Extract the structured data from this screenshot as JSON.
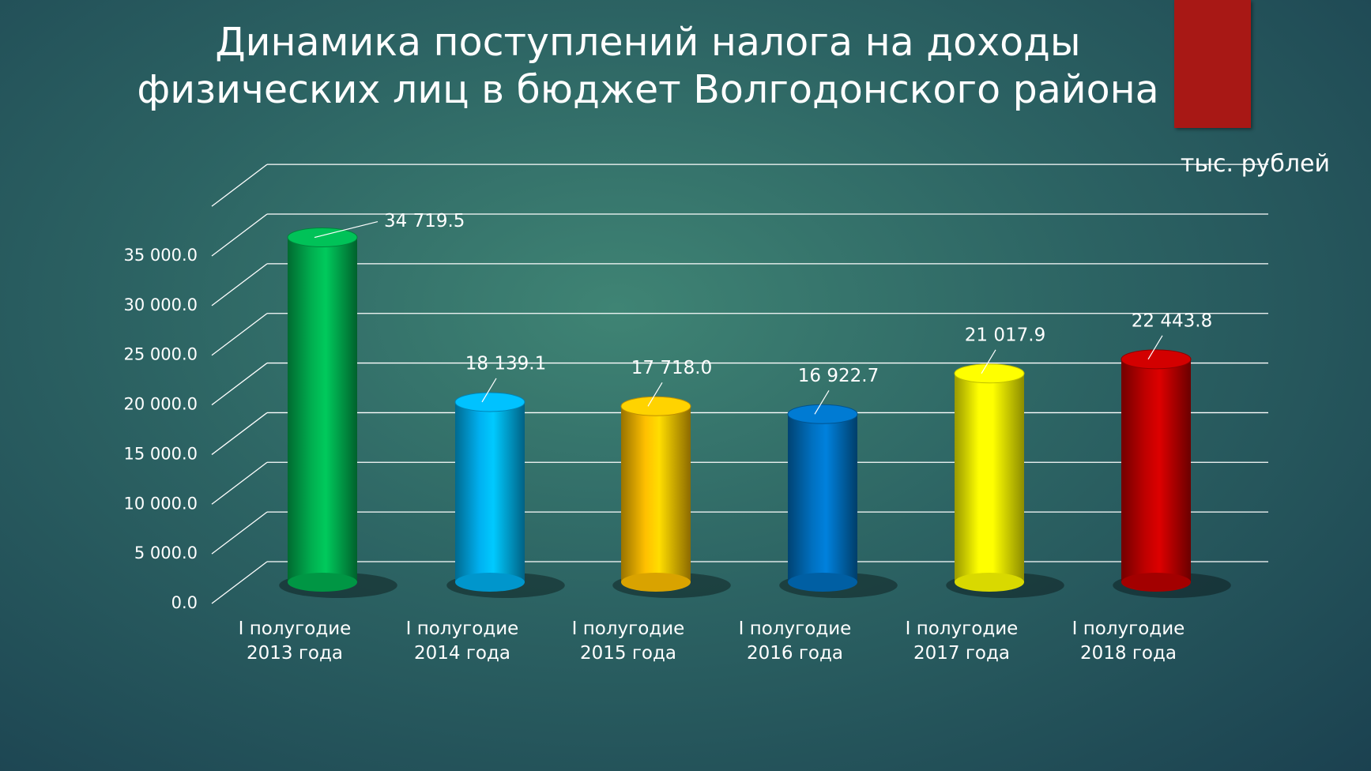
{
  "chart_data": {
    "type": "bar",
    "title": [
      "Динамика поступлений налога на доходы",
      "физических лиц в бюджет Волгодонского района"
    ],
    "unit": "тыс. рублей",
    "categories": [
      "I полугодие 2013 года",
      "I полугодие 2014 года",
      "I полугодие 2015 года",
      "I полугодие 2016 года",
      "I полугодие 2017 года",
      "I полугодие 2018 года"
    ],
    "values": [
      34719.5,
      18139.1,
      17718.0,
      16922.7,
      21017.9,
      22443.8
    ],
    "value_labels": [
      "34 719.5",
      "18 139.1",
      "17 718.0",
      "16 922.7",
      "21 017.9",
      "22 443.8"
    ],
    "colors": [
      "#00b050",
      "#00b0f0",
      "#ffc000",
      "#0070c0",
      "#ffff00",
      "#c00000"
    ],
    "ylim": [
      0,
      40000
    ],
    "yticks": [
      {
        "value": 0,
        "label": "0.0"
      },
      {
        "value": 5000,
        "label": "5 000.0"
      },
      {
        "value": 10000,
        "label": "10 000.0"
      },
      {
        "value": 15000,
        "label": "15 000.0"
      },
      {
        "value": 20000,
        "label": "20 000.0"
      },
      {
        "value": 25000,
        "label": "25 000.0"
      },
      {
        "value": 30000,
        "label": "30 000.0"
      },
      {
        "value": 35000,
        "label": "35 000.0"
      }
    ],
    "grid": true
  }
}
